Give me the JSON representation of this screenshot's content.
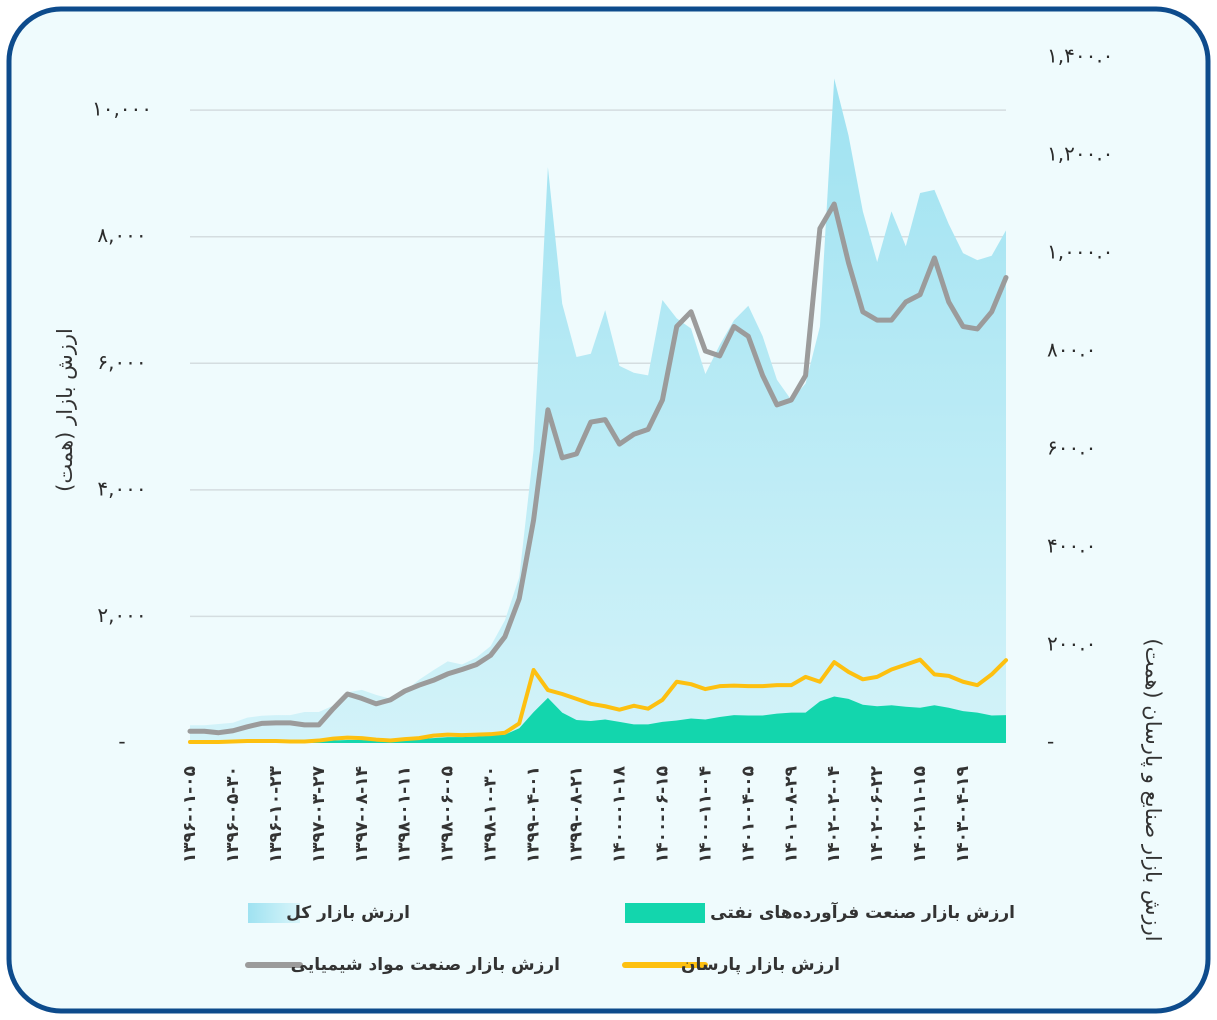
{
  "chart_data": {
    "type": "line",
    "y_label": "ارزش بازار (همت)",
    "y2_label": "ارزش بازار صنایع و پارسان (همت)",
    "categories": [
      "۱۳۹۶-۰۱-۰۵",
      null,
      null,
      "۱۳۹۶-۰۵-۳۰",
      null,
      null,
      "۱۳۹۶-۱۰-۲۳",
      null,
      null,
      "۱۳۹۷-۰۳-۲۷",
      null,
      null,
      "۱۳۹۷-۰۸-۱۴",
      null,
      null,
      "۱۳۹۸-۰۱-۱۱",
      null,
      null,
      "۱۳۹۸-۰۶-۰۵",
      null,
      null,
      "۱۳۹۸-۱۰-۳۰",
      null,
      null,
      "۱۳۹۹-۰۴-۰۱",
      null,
      null,
      "۱۳۹۹-۰۸-۲۱",
      null,
      null,
      "۱۴۰۰-۰۱-۱۸",
      null,
      null,
      "۱۴۰۰-۰۶-۱۵",
      null,
      null,
      "۱۴۰۰-۱۱-۰۴",
      null,
      null,
      "۱۴۰۱-۰۴-۰۵",
      null,
      null,
      "۱۴۰۱-۰۸-۲۹",
      null,
      null,
      "۱۴۰۲-۰۲-۰۴",
      null,
      null,
      "۱۴۰۲-۰۶-۲۲",
      null,
      null,
      "۱۴۰۲-۱۱-۱۵",
      null,
      null,
      "۱۴۰۳-۰۴-۱۹",
      null,
      null,
      null
    ],
    "series": [
      {
        "name": "ارزش بازار کل",
        "type": "area",
        "axis": "y",
        "color": "#aee8f4",
        "values": [
          280,
          280,
          300,
          320,
          400,
          430,
          440,
          440,
          490,
          490,
          590,
          800,
          840,
          760,
          700,
          820,
          1000,
          1150,
          1290,
          1240,
          1350,
          1530,
          1940,
          2620,
          4630,
          9100,
          6940,
          6100,
          6150,
          6840,
          5960,
          5850,
          5810,
          7000,
          6710,
          6550,
          5830,
          6290,
          6680,
          6910,
          6430,
          5740,
          5420,
          5680,
          6580,
          10500,
          9600,
          8400,
          7600,
          8400,
          7850,
          8690,
          8740,
          8200,
          7740,
          7630,
          7700,
          8100
        ]
      },
      {
        "name": "ارزش بازار صنعت فرآورده‌های نفتی",
        "type": "area",
        "axis": "y2",
        "color": "#13d6ad",
        "values": [
          1,
          1,
          1,
          2,
          2,
          2,
          3,
          3,
          3,
          3,
          5,
          6,
          6,
          5,
          5,
          6,
          8,
          10,
          12,
          12,
          13,
          15,
          17,
          30,
          63,
          92,
          62,
          47,
          45,
          48,
          43,
          38,
          38,
          43,
          46,
          50,
          48,
          53,
          57,
          56,
          56,
          60,
          62,
          62,
          85,
          95,
          90,
          78,
          75,
          77,
          74,
          72,
          77,
          72,
          65,
          62,
          56,
          57
        ]
      },
      {
        "name": "ارزش بازار پارسان",
        "type": "line",
        "axis": "y2",
        "color": "#fdc010",
        "values": [
          2,
          2,
          2,
          3,
          4,
          4,
          4,
          3,
          3,
          5,
          9,
          11,
          10,
          7,
          5,
          8,
          10,
          15,
          17,
          16,
          17,
          18,
          21,
          40,
          149,
          108,
          100,
          90,
          80,
          75,
          68,
          76,
          70,
          88,
          125,
          120,
          110,
          116,
          117,
          116,
          116,
          118,
          118,
          135,
          125,
          165,
          145,
          130,
          135,
          150,
          160,
          170,
          140,
          137,
          125,
          118,
          140,
          169
        ]
      },
      {
        "name": "ارزش بازار صنعت مواد شیمیایی",
        "type": "line",
        "axis": "y2",
        "color": "#9b9b9b",
        "values": [
          24,
          24,
          21,
          25,
          33,
          40,
          41,
          41,
          37,
          37,
          70,
          100,
          91,
          80,
          88,
          106,
          118,
          128,
          141,
          150,
          160,
          179,
          217,
          295,
          455,
          680,
          582,
          590,
          655,
          660,
          610,
          630,
          640,
          700,
          850,
          880,
          800,
          790,
          850,
          830,
          750,
          690,
          700,
          750,
          1050,
          1100,
          980,
          880,
          863,
          863,
          900,
          915,
          990,
          900,
          850,
          845,
          880,
          950
        ]
      }
    ],
    "ylim": [
      0,
      10840
    ],
    "yticks": [
      {
        "value": 0,
        "label": "-"
      },
      {
        "value": 2000,
        "label": "۲,۰۰۰"
      },
      {
        "value": 4000,
        "label": "۴,۰۰۰"
      },
      {
        "value": 6000,
        "label": "۶,۰۰۰"
      },
      {
        "value": 8000,
        "label": "۸,۰۰۰"
      },
      {
        "value": 10000,
        "label": "۱۰,۰۰۰"
      }
    ],
    "y2lim": [
      0,
      1400
    ],
    "y2ticks": [
      {
        "value": 0,
        "label": "-"
      },
      {
        "value": 200,
        "label": "۲۰۰.۰"
      },
      {
        "value": 400,
        "label": "۴۰۰.۰"
      },
      {
        "value": 600,
        "label": "۶۰۰.۰"
      },
      {
        "value": 800,
        "label": "۸۰۰.۰"
      },
      {
        "value": 1000,
        "label": "۱,۰۰۰.۰"
      },
      {
        "value": 1200,
        "label": "۱,۲۰۰.۰"
      },
      {
        "value": 1400,
        "label": "۱,۴۰۰.۰"
      }
    ],
    "grid": true,
    "legend": "bottom"
  }
}
